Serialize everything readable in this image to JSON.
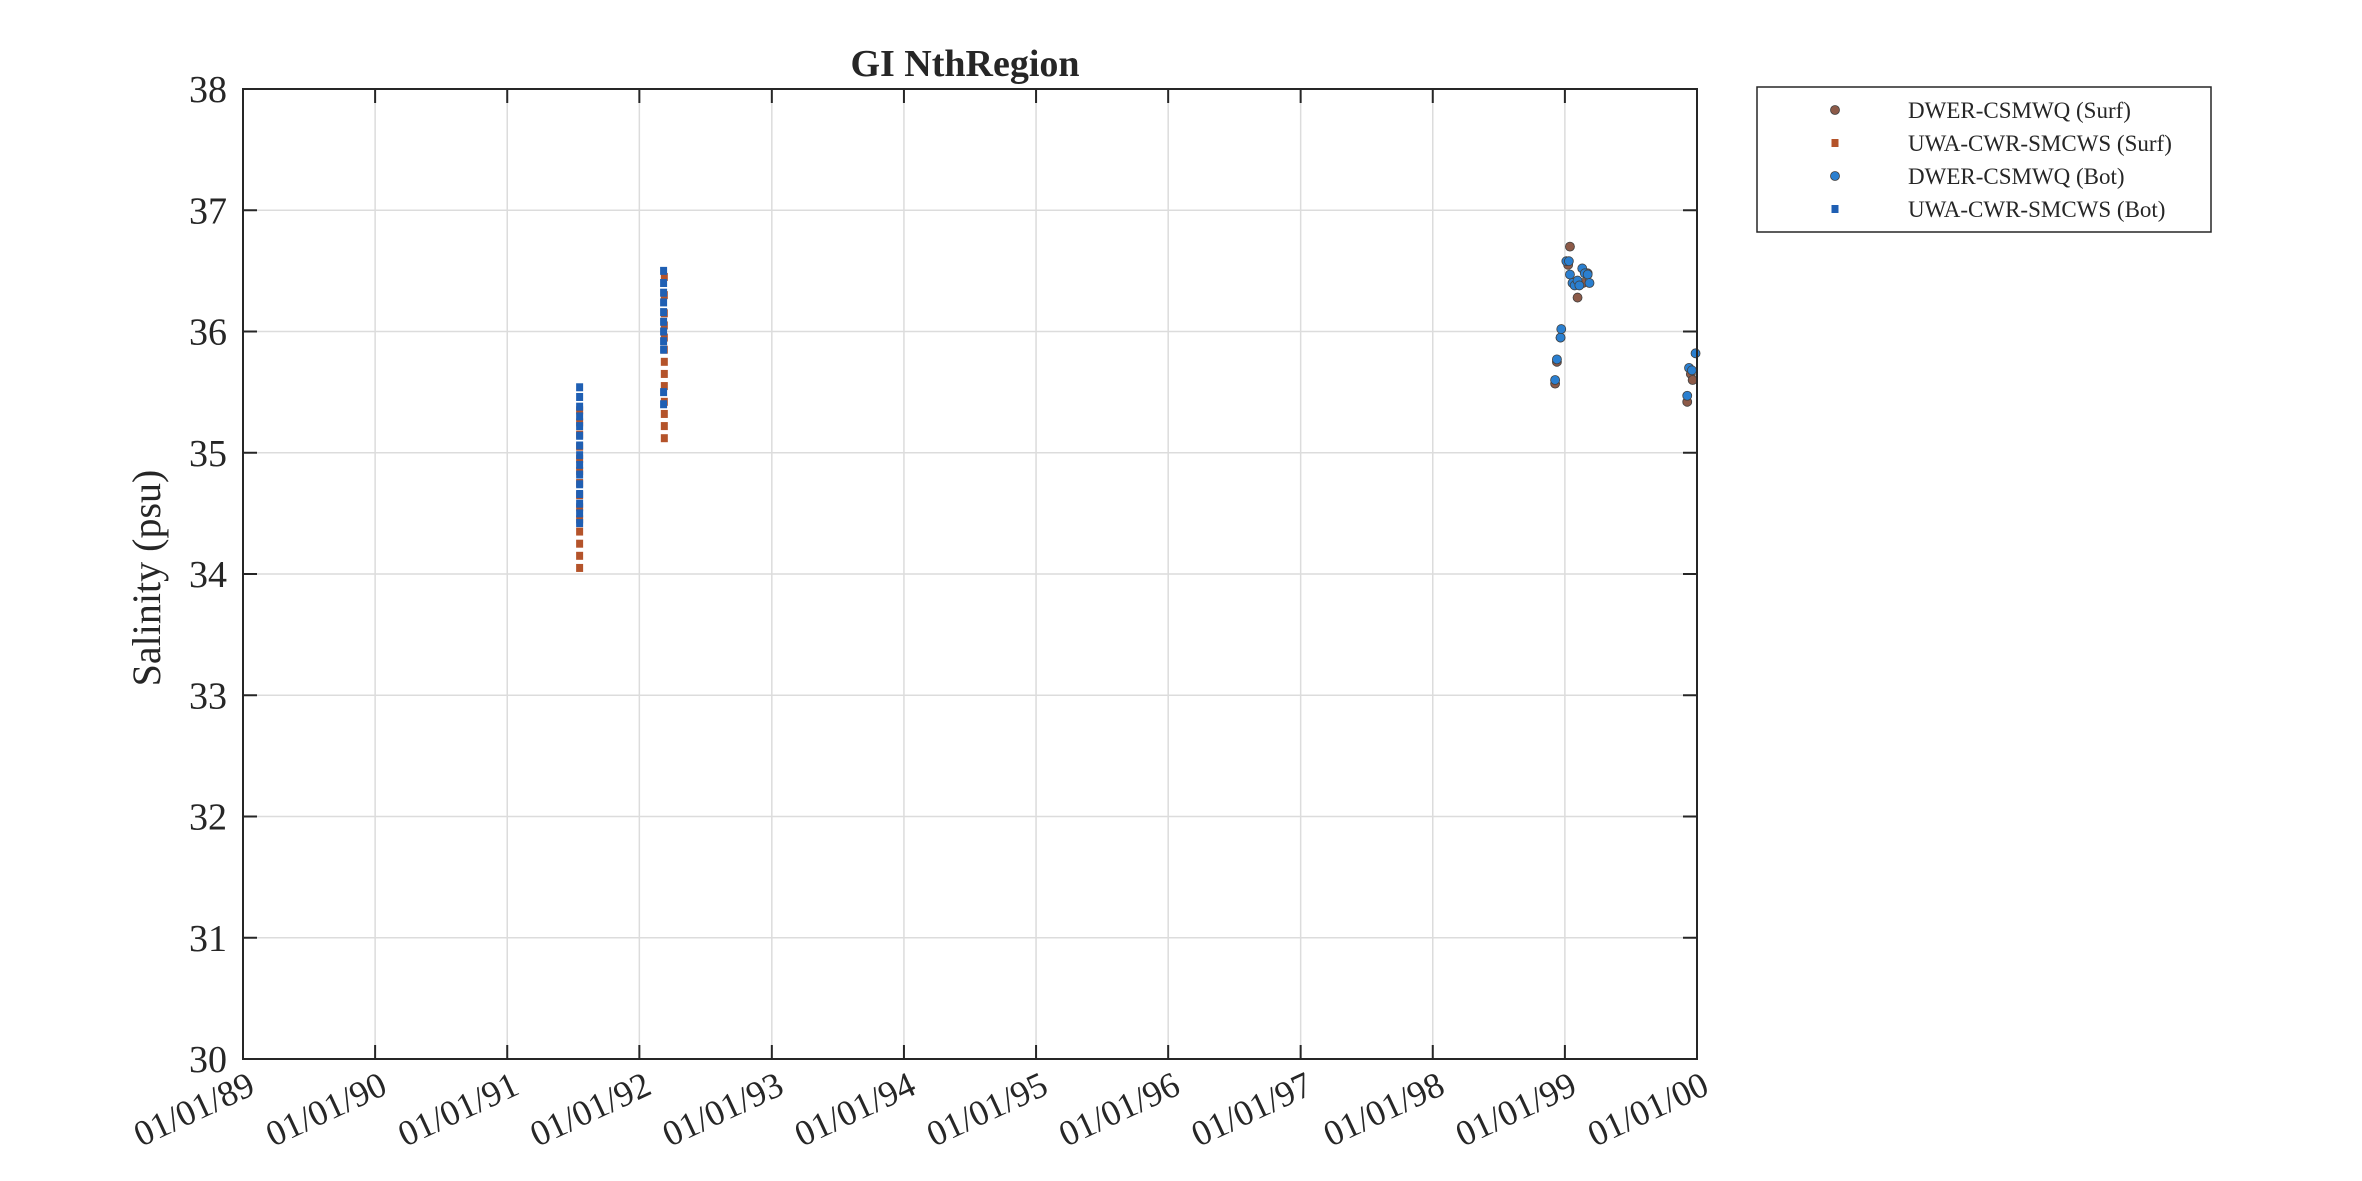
{
  "chart_data": {
    "type": "scatter",
    "title": "GI NthRegion",
    "xlabel": "",
    "ylabel": "Salinity (psu)",
    "xlim": [
      "01/01/89",
      "01/01/00"
    ],
    "ylim": [
      30,
      38
    ],
    "x_tick_labels": [
      "01/01/89",
      "01/01/90",
      "01/01/91",
      "01/01/92",
      "01/01/93",
      "01/01/94",
      "01/01/95",
      "01/01/96",
      "01/01/97",
      "01/01/98",
      "01/01/99",
      "01/01/00"
    ],
    "y_tick_labels": [
      "30",
      "31",
      "32",
      "33",
      "34",
      "35",
      "36",
      "37",
      "38"
    ],
    "grid": true,
    "legend_position": "outside-top-right",
    "colors": {
      "surf_circle": "#8c5a48",
      "surf_square": "#b4532a",
      "bot_circle": "#2a7fd0",
      "bot_square": "#1f5fb3",
      "axis": "#262626",
      "grid": "#dcdcdc"
    },
    "series": [
      {
        "name": "DWER-CSMWQ (Surf)",
        "marker": "circle",
        "color": "#8c5a48",
        "points": [
          [
            "1998-12-05",
            35.57
          ],
          [
            "1998-12-10",
            35.75
          ],
          [
            "1998-12-20",
            35.95
          ],
          [
            "1999-01-10",
            36.55
          ],
          [
            "1999-01-15",
            36.7
          ],
          [
            "1999-01-25",
            36.4
          ],
          [
            "1999-02-05",
            36.28
          ],
          [
            "1999-02-20",
            36.4
          ],
          [
            "1999-03-05",
            36.48
          ],
          [
            "1999-12-05",
            35.42
          ],
          [
            "1999-12-15",
            35.65
          ],
          [
            "1999-12-20",
            35.6
          ]
        ]
      },
      {
        "name": "UWA-CWR-SMCWS (Surf)",
        "marker": "square",
        "color": "#b4532a",
        "points": [
          [
            "1991-07-20",
            34.05
          ],
          [
            "1991-07-20",
            34.15
          ],
          [
            "1991-07-20",
            34.25
          ],
          [
            "1991-07-20",
            34.35
          ],
          [
            "1991-07-20",
            34.45
          ],
          [
            "1991-07-20",
            34.55
          ],
          [
            "1991-07-20",
            34.65
          ],
          [
            "1991-07-20",
            34.75
          ],
          [
            "1991-07-20",
            34.85
          ],
          [
            "1991-07-20",
            34.95
          ],
          [
            "1991-07-20",
            35.05
          ],
          [
            "1991-07-20",
            35.15
          ],
          [
            "1991-07-20",
            35.25
          ],
          [
            "1991-07-20",
            35.35
          ],
          [
            "1992-03-10",
            35.12
          ],
          [
            "1992-03-10",
            35.22
          ],
          [
            "1992-03-10",
            35.32
          ],
          [
            "1992-03-10",
            35.42
          ],
          [
            "1992-03-10",
            35.55
          ],
          [
            "1992-03-10",
            35.65
          ],
          [
            "1992-03-10",
            35.75
          ],
          [
            "1992-03-10",
            35.85
          ],
          [
            "1992-03-10",
            35.95
          ],
          [
            "1992-03-10",
            36.05
          ],
          [
            "1992-03-10",
            36.15
          ],
          [
            "1992-03-10",
            36.3
          ],
          [
            "1992-03-10",
            36.45
          ]
        ]
      },
      {
        "name": "DWER-CSMWQ (Bot)",
        "marker": "circle",
        "color": "#2a7fd0",
        "points": [
          [
            "1998-12-05",
            35.6
          ],
          [
            "1998-12-10",
            35.77
          ],
          [
            "1998-12-20",
            35.95
          ],
          [
            "1998-12-22",
            36.02
          ],
          [
            "1999-01-05",
            36.58
          ],
          [
            "1999-01-12",
            36.58
          ],
          [
            "1999-01-15",
            36.47
          ],
          [
            "1999-01-22",
            36.4
          ],
          [
            "1999-01-28",
            36.38
          ],
          [
            "1999-02-05",
            36.42
          ],
          [
            "1999-02-10",
            36.38
          ],
          [
            "1999-02-18",
            36.52
          ],
          [
            "1999-02-25",
            36.48
          ],
          [
            "1999-03-05",
            36.47
          ],
          [
            "1999-03-10",
            36.4
          ],
          [
            "1999-12-05",
            35.47
          ],
          [
            "1999-12-10",
            35.7
          ],
          [
            "1999-12-18",
            35.68
          ],
          [
            "1999-12-28",
            35.82
          ]
        ]
      },
      {
        "name": "UWA-CWR-SMCWS (Bot)",
        "marker": "square",
        "color": "#1f5fb3",
        "points": [
          [
            "1991-07-20",
            34.42
          ],
          [
            "1991-07-20",
            34.5
          ],
          [
            "1991-07-20",
            34.58
          ],
          [
            "1991-07-20",
            34.66
          ],
          [
            "1991-07-20",
            34.74
          ],
          [
            "1991-07-20",
            34.82
          ],
          [
            "1991-07-20",
            34.9
          ],
          [
            "1991-07-20",
            34.98
          ],
          [
            "1991-07-20",
            35.06
          ],
          [
            "1991-07-20",
            35.14
          ],
          [
            "1991-07-20",
            35.22
          ],
          [
            "1991-07-20",
            35.3
          ],
          [
            "1991-07-20",
            35.38
          ],
          [
            "1991-07-20",
            35.46
          ],
          [
            "1991-07-20",
            35.54
          ],
          [
            "1992-03-08",
            35.4
          ],
          [
            "1992-03-08",
            35.5
          ],
          [
            "1992-03-08",
            35.85
          ],
          [
            "1992-03-08",
            35.92
          ],
          [
            "1992-03-08",
            36.0
          ],
          [
            "1992-03-08",
            36.08
          ],
          [
            "1992-03-08",
            36.16
          ],
          [
            "1992-03-08",
            36.24
          ],
          [
            "1992-03-08",
            36.32
          ],
          [
            "1992-03-08",
            36.4
          ],
          [
            "1992-03-08",
            36.5
          ]
        ]
      }
    ]
  }
}
